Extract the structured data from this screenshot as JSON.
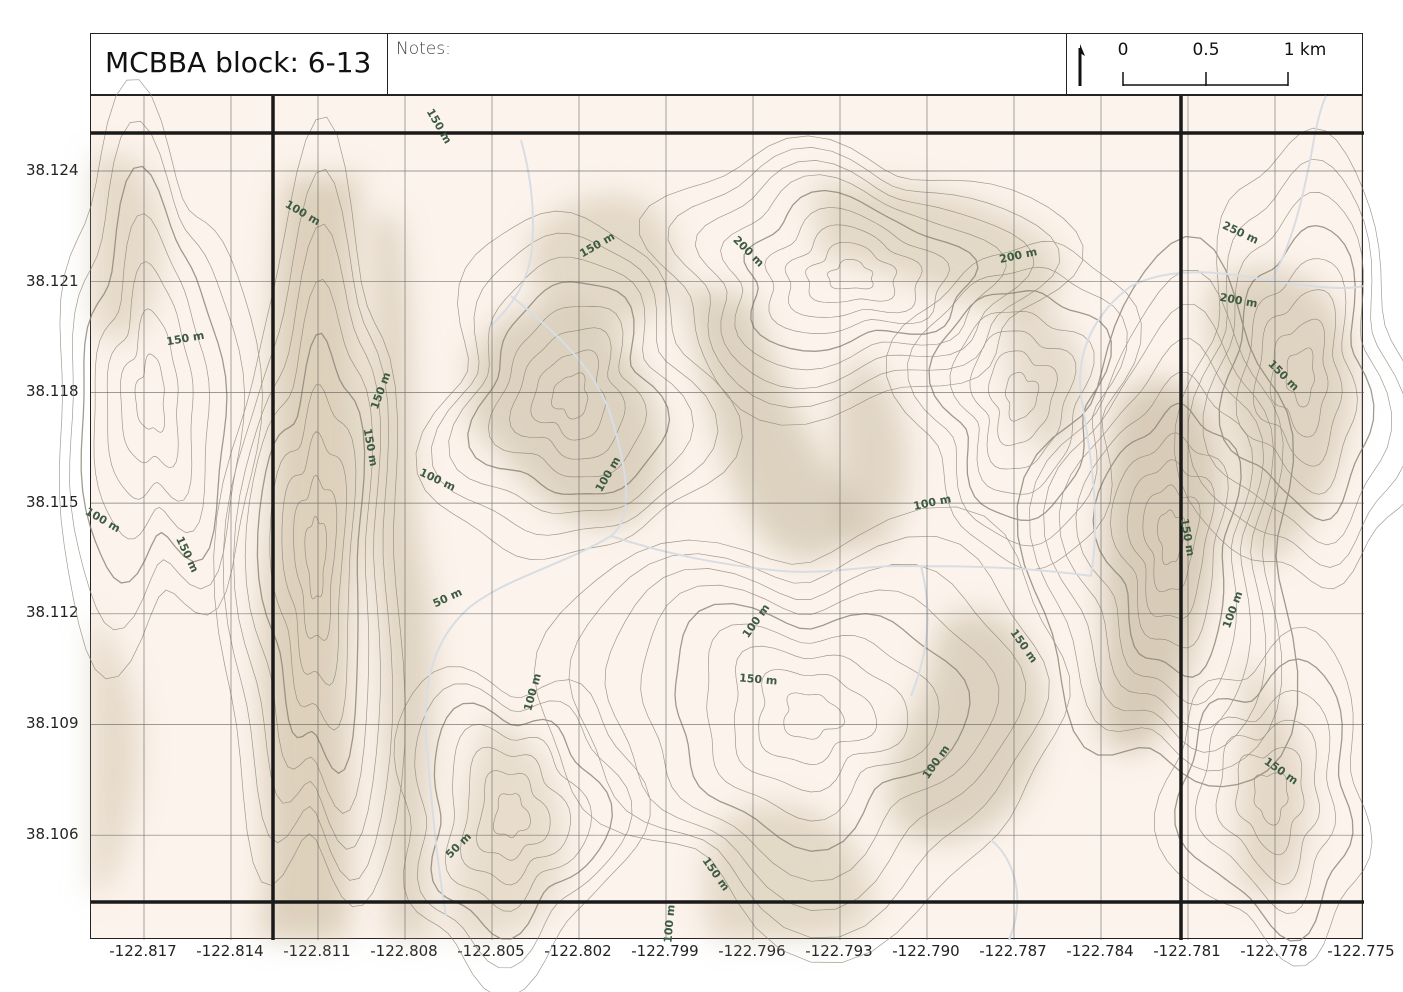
{
  "title": "MCBBA block: 6-13",
  "notes_label": "Notes:",
  "scale_bar": {
    "labels": [
      "0",
      "0.5",
      "1 km"
    ]
  },
  "north_arrow": {
    "icon": "north-arrow-icon"
  },
  "latitude_labels": [
    "38.124",
    "38.121",
    "38.118",
    "38.115",
    "38.112",
    "38.109",
    "38.106"
  ],
  "longitude_labels": [
    "-122.817",
    "-122.814",
    "-122.811",
    "-122.808",
    "-122.805",
    "-122.802",
    "-122.799",
    "-122.796",
    "-122.793",
    "-122.790",
    "-122.787",
    "-122.784",
    "-122.781",
    "-122.778",
    "-122.775"
  ],
  "contour_labels": [
    {
      "text": "150 m"
    },
    {
      "text": "100 m"
    },
    {
      "text": "150 m"
    },
    {
      "text": "200 m"
    },
    {
      "text": "200 m"
    },
    {
      "text": "250 m"
    },
    {
      "text": "200 m"
    },
    {
      "text": "150 m"
    },
    {
      "text": "150 m"
    },
    {
      "text": "150 m"
    },
    {
      "text": "150 m"
    },
    {
      "text": "100 m"
    },
    {
      "text": "100 m"
    },
    {
      "text": "100 m"
    },
    {
      "text": "100 m"
    },
    {
      "text": "150 m"
    },
    {
      "text": "50 m"
    },
    {
      "text": "150 m"
    },
    {
      "text": "100 m"
    },
    {
      "text": "100 m"
    },
    {
      "text": "150 m"
    },
    {
      "text": "150 m"
    },
    {
      "text": "100 m"
    },
    {
      "text": "100 m"
    },
    {
      "text": "150 m"
    },
    {
      "text": "50 m"
    },
    {
      "text": "150 m"
    },
    {
      "text": "100 m"
    }
  ],
  "colors": {
    "background": "#fcf3ec",
    "hillshade": "#b9ab8c",
    "contour": "#8a8474",
    "grid": "#555555",
    "block_lines": "#1a1a1a",
    "stream": "#d8dde4",
    "label": "#3d5a42"
  }
}
